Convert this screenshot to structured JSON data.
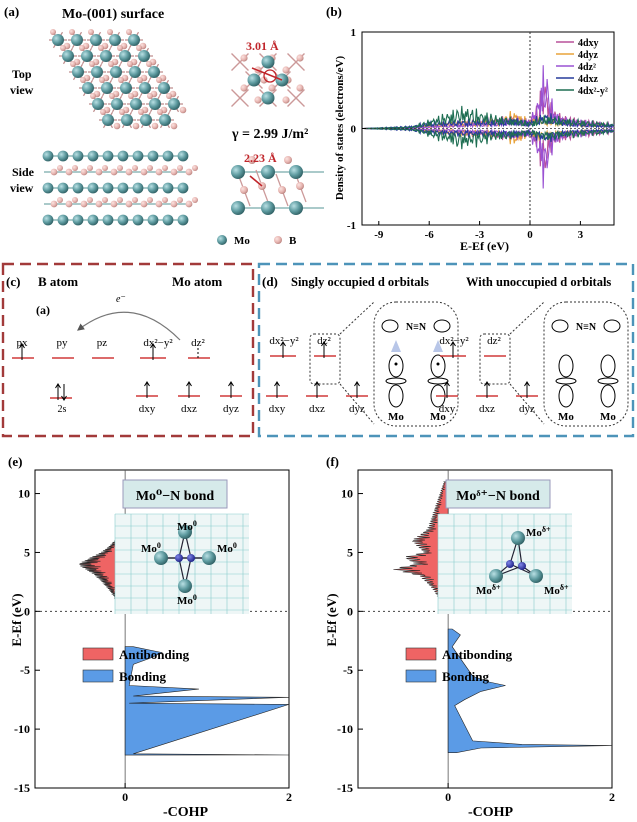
{
  "panel_a": {
    "letter": "(a)",
    "title": "Mo-(001) surface",
    "top_view_1": "Top",
    "top_view_2": "view",
    "side_view_1": "Side",
    "side_view_2": "view",
    "bond_top": "3.01 Å",
    "bond_side": "2.23 Å",
    "gamma": "γ = 2.99 J/m²",
    "legend_mo": "Mo",
    "legend_b": "B",
    "colors": {
      "mo": "#5e9ba0",
      "b": "#e6b4b0",
      "label": "#c0262b"
    }
  },
  "panel_b": {
    "letter": "(b)",
    "xlabel": "E-Ef (eV)",
    "ylabel": "Density of states (electrons/eV)",
    "xticks": [
      "-9",
      "-6",
      "-3",
      "0",
      "3"
    ],
    "yticks": [
      "1",
      "0",
      "-1"
    ],
    "legend": [
      "4dxy",
      "4dyz",
      "4dz²",
      "4dxz",
      "4dx²-y²"
    ],
    "colors": [
      "#b9509a",
      "#e8a33a",
      "#9a52d3",
      "#273b9c",
      "#1e6e52"
    ]
  },
  "panel_c": {
    "letter": "(c)",
    "inner_letter": "(a)",
    "b_atom": "B atom",
    "mo_atom": "Mo atom",
    "electron": "e⁻",
    "px": "px",
    "py": "py",
    "pz": "pz",
    "s2": "2s",
    "dx2y2": "dx²−y²",
    "dz2": "dz²",
    "dxy": "dxy",
    "dxz": "dxz",
    "dyz": "dyz"
  },
  "panel_d": {
    "letter": "(d)",
    "singly": "Singly occupied d orbitals",
    "unoccupied": "With unoccupied d orbitals",
    "nn": "N≡N",
    "mo": "Mo",
    "dx2y2": "dx²−y²",
    "dz2": "dz²",
    "dxy": "dxy",
    "dxz": "dxz",
    "dyz": "dyz"
  },
  "panel_e": {
    "letter": "(e)",
    "bond_label": "Mo⁰−N bond",
    "ylabel": "E-Ef (eV)",
    "xlabel": "-COHP",
    "xticks": [
      "0",
      "2"
    ],
    "yticks": [
      "10",
      "5",
      "0",
      "-5",
      "-10",
      "-15"
    ],
    "antibonding": "Antibonding",
    "bonding": "Bonding",
    "mo_label": "Mo",
    "sup": "0"
  },
  "panel_f": {
    "letter": "(f)",
    "bond_label": "Moᵟ⁺−N bond",
    "ylabel": "E-Ef (eV)",
    "xlabel": "-COHP",
    "xticks": [
      "0",
      "2"
    ],
    "yticks": [
      "10",
      "5",
      "0",
      "-5",
      "-10",
      "-15"
    ],
    "antibonding": "Antibonding",
    "bonding": "Bonding",
    "mo_label": "Mo",
    "sup": "δ+"
  },
  "cohp_colors": {
    "antibonding": "#ef6464",
    "bonding": "#5b9be6"
  },
  "chart_data": [
    {
      "type": "line",
      "title": "",
      "xlabel": "E-Ef (eV)",
      "ylabel": "Density of states (electrons/eV)",
      "xlim": [
        -10,
        5
      ],
      "ylim": [
        -1,
        1
      ],
      "series": [
        {
          "name": "4dxy",
          "x": [
            -10,
            -7,
            -6,
            -4,
            -2,
            -1,
            0,
            0.5,
            0.8,
            1.0,
            1.2,
            1.5,
            2,
            3,
            4,
            5
          ],
          "y": [
            0,
            0.02,
            0.05,
            0.1,
            0.12,
            0.15,
            0.1,
            0.3,
            0.6,
            0.5,
            0.3,
            0.2,
            0.15,
            0.1,
            0.08,
            0.05
          ]
        },
        {
          "name": "4dyz",
          "x": [
            -10,
            -7,
            -6,
            -4,
            -2,
            -1,
            0,
            0.5,
            1,
            2,
            3,
            4,
            5
          ],
          "y": [
            0,
            0.02,
            0.04,
            0.08,
            0.1,
            0.2,
            0.1,
            0.15,
            0.12,
            0.1,
            0.08,
            0.06,
            0.04
          ]
        },
        {
          "name": "4dz²",
          "x": [
            -10,
            -7,
            -6,
            -4,
            -2,
            -1,
            0,
            0.5,
            0.8,
            1.0,
            1.2,
            1.5,
            2,
            3,
            4,
            5
          ],
          "y": [
            0,
            0.01,
            0.03,
            0.06,
            0.1,
            0.12,
            0.1,
            0.35,
            0.72,
            0.62,
            0.4,
            0.2,
            0.12,
            0.1,
            0.06,
            0.04
          ]
        },
        {
          "name": "4dxz",
          "x": [
            -10,
            -7,
            -6,
            -4,
            -2,
            -1,
            0,
            0.5,
            1,
            2,
            3,
            4,
            5
          ],
          "y": [
            0,
            0.03,
            0.08,
            0.1,
            0.1,
            0.12,
            0.08,
            0.15,
            0.18,
            0.1,
            0.07,
            0.05,
            0.05
          ]
        },
        {
          "name": "4dx²-y²",
          "x": [
            -10,
            -7,
            -6,
            -4,
            -2,
            -1,
            0,
            0.5,
            1,
            2,
            3,
            4,
            5
          ],
          "y": [
            0,
            0.02,
            0.1,
            0.25,
            0.15,
            0.12,
            0.08,
            0.12,
            0.15,
            0.12,
            0.1,
            0.08,
            0.05
          ]
        }
      ]
    },
    {
      "type": "area",
      "title": "Mo⁰−N bond",
      "xlabel": "-COHP",
      "ylabel": "E-Ef (eV)",
      "xlim": [
        -1.1,
        2
      ],
      "ylim": [
        -15,
        12
      ],
      "series": [
        {
          "name": "Antibonding",
          "y": [
            6.8,
            6.2,
            5.5,
            5.0,
            4.5,
            4.0,
            3.6,
            3.2,
            2.6,
            2.0,
            1.4,
            0.8,
            0.2,
            -0.2
          ],
          "x": [
            -0.05,
            -0.1,
            -0.2,
            -0.3,
            -0.45,
            -0.58,
            -0.5,
            -0.4,
            -0.3,
            -0.22,
            -0.15,
            -0.1,
            -0.06,
            -0.02
          ]
        },
        {
          "name": "Bonding",
          "y": [
            -3.0,
            -3.5,
            -4.0,
            -4.5,
            -6.3,
            -6.6,
            -7.2,
            -7.3,
            -7.8,
            -7.9,
            -12.1,
            -12.2
          ],
          "x": [
            0.1,
            0.45,
            0.3,
            0.1,
            0.05,
            0.9,
            0.1,
            2.0,
            0.05,
            2.0,
            0.1,
            2.0
          ]
        }
      ]
    },
    {
      "type": "area",
      "title": "Moᵟ⁺−N bond",
      "xlabel": "-COHP",
      "ylabel": "E-Ef (eV)",
      "xlim": [
        -1.1,
        2
      ],
      "ylim": [
        -15,
        12
      ],
      "series": [
        {
          "name": "Antibonding",
          "y": [
            11.0,
            10.0,
            9.0,
            8.0,
            7.0,
            6.0,
            5.0,
            4.6,
            4.0,
            3.6,
            3.0,
            2.0,
            1.0,
            0.0
          ],
          "x": [
            -0.05,
            -0.1,
            -0.15,
            -0.2,
            -0.25,
            -0.45,
            -0.3,
            -0.55,
            -0.4,
            -0.7,
            -0.35,
            -0.2,
            -0.1,
            -0.04
          ]
        },
        {
          "name": "Bonding",
          "y": [
            -1.5,
            -2.0,
            -2.5,
            -3.0,
            -5.5,
            -6.0,
            -6.3,
            -6.8,
            -7.5,
            -8.0,
            -11.0,
            -11.3,
            -11.4,
            -11.6,
            -12.0
          ],
          "x": [
            0.05,
            0.15,
            0.1,
            0.05,
            0.3,
            0.5,
            0.7,
            0.4,
            0.2,
            0.08,
            0.3,
            0.9,
            2.0,
            0.4,
            0.1
          ]
        }
      ]
    }
  ]
}
